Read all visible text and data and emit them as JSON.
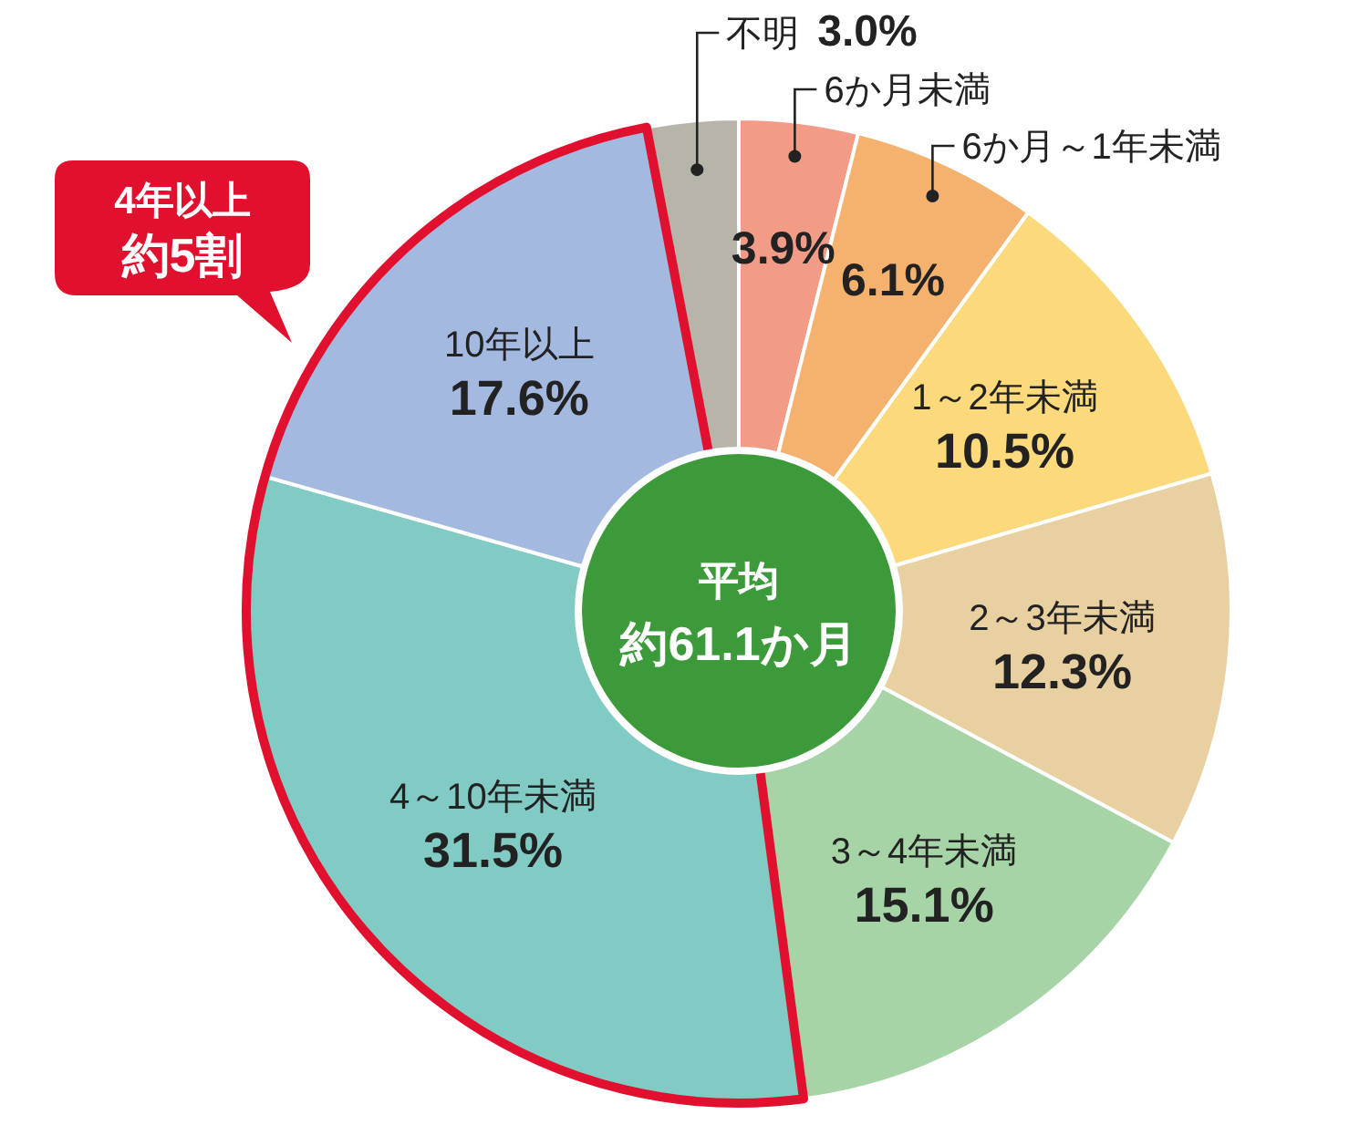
{
  "chart_data": {
    "type": "donut",
    "categories": [
      "6か月未満",
      "6か月～1年未満",
      "1～2年未満",
      "2～3年未満",
      "3～4年未満",
      "4～10年未満",
      "10年以上",
      "不明"
    ],
    "values": [
      3.9,
      6.1,
      10.5,
      12.3,
      15.1,
      31.5,
      17.6,
      3.0
    ],
    "value_labels": [
      "3.9%",
      "6.1%",
      "10.5%",
      "12.3%",
      "15.1%",
      "31.5%",
      "17.6%",
      "3.0%"
    ],
    "colors": [
      "#f29b86",
      "#f5b16e",
      "#fcd97a",
      "#e8d0a0",
      "#a6d4a6",
      "#82cbc5",
      "#a4b9e0",
      "#b7b5aa"
    ],
    "annotations": [
      "平均",
      "約61.1か月",
      {
        "text": "4年以上",
        "x": "4～10年未満"
      },
      {
        "text": "約5割"
      }
    ]
  }
}
